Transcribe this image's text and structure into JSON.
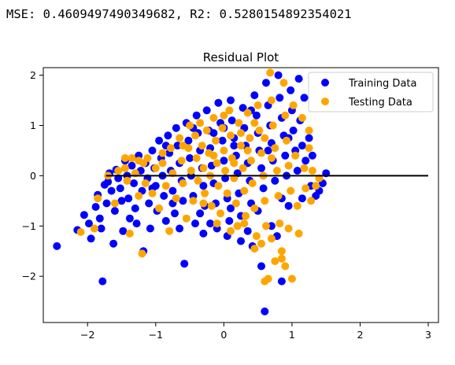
{
  "output": {
    "metrics_line": "MSE: 0.4609497490349682, R2: 0.5280154892354021"
  },
  "chart_data": {
    "type": "scatter",
    "title": "Residual Plot",
    "xlabel": "",
    "ylabel": "",
    "xlim": [
      -2.65,
      3.15
    ],
    "ylim": [
      -2.92,
      2.15
    ],
    "xticks": [
      -2,
      -1,
      0,
      1,
      2,
      3
    ],
    "yticks": [
      -2,
      -1,
      0,
      1,
      2
    ],
    "xtick_labels": [
      "−2",
      "−1",
      "0",
      "1",
      "2",
      "3"
    ],
    "ytick_labels": [
      "−2",
      "−1",
      "0",
      "1",
      "2"
    ],
    "grid": false,
    "legend": "top-right",
    "hline": {
      "y": 0,
      "xmin": -1.73,
      "xmax": 3.0,
      "color": "#000000"
    },
    "series": [
      {
        "name": "Training Data",
        "color": "#0000ff",
        "points": [
          [
            -2.45,
            -1.4
          ],
          [
            -2.15,
            -1.08
          ],
          [
            -2.05,
            -0.78
          ],
          [
            -1.98,
            -0.95
          ],
          [
            -1.95,
            -1.25
          ],
          [
            -1.88,
            -0.62
          ],
          [
            -1.85,
            -0.38
          ],
          [
            -1.82,
            -0.85
          ],
          [
            -1.8,
            -1.05
          ],
          [
            -1.78,
            -2.1
          ],
          [
            -1.75,
            -0.18
          ],
          [
            -1.72,
            -0.55
          ],
          [
            -1.7,
            -0.12
          ],
          [
            -1.68,
            0.05
          ],
          [
            -1.65,
            -0.3
          ],
          [
            -1.62,
            -1.35
          ],
          [
            -1.6,
            -0.7
          ],
          [
            -1.58,
            0.12
          ],
          [
            -1.55,
            -0.05
          ],
          [
            -1.52,
            -0.25
          ],
          [
            -1.5,
            -0.5
          ],
          [
            -1.48,
            -1.1
          ],
          [
            -1.45,
            0.3
          ],
          [
            -1.42,
            0.0
          ],
          [
            -1.4,
            -0.45
          ],
          [
            -1.38,
            -0.85
          ],
          [
            -1.35,
            0.2
          ],
          [
            -1.32,
            -0.15
          ],
          [
            -1.3,
            -0.65
          ],
          [
            -1.28,
            -0.95
          ],
          [
            -1.25,
            0.4
          ],
          [
            -1.22,
            0.1
          ],
          [
            -1.2,
            -0.3
          ],
          [
            -1.18,
            -1.5
          ],
          [
            -1.15,
            0.25
          ],
          [
            -1.12,
            -0.05
          ],
          [
            -1.1,
            -0.55
          ],
          [
            -1.08,
            -1.05
          ],
          [
            -1.05,
            0.5
          ],
          [
            -1.02,
            0.15
          ],
          [
            -1.0,
            -0.2
          ],
          [
            -0.98,
            -0.7
          ],
          [
            -0.95,
            0.7
          ],
          [
            -0.92,
            0.35
          ],
          [
            -0.9,
            0.0
          ],
          [
            -0.88,
            -0.4
          ],
          [
            -0.85,
            -0.9
          ],
          [
            -0.82,
            0.8
          ],
          [
            -0.8,
            0.45
          ],
          [
            -0.78,
            0.1
          ],
          [
            -0.75,
            -0.3
          ],
          [
            -0.72,
            -0.75
          ],
          [
            -0.7,
            0.95
          ],
          [
            -0.68,
            0.6
          ],
          [
            -0.65,
            0.25
          ],
          [
            -0.62,
            -0.1
          ],
          [
            -0.6,
            -0.5
          ],
          [
            -0.58,
            -1.75
          ],
          [
            -0.55,
            1.05
          ],
          [
            -0.52,
            0.7
          ],
          [
            -0.5,
            0.35
          ],
          [
            -0.48,
            0.0
          ],
          [
            -0.45,
            -0.4
          ],
          [
            -0.42,
            -0.95
          ],
          [
            -0.4,
            1.2
          ],
          [
            -0.38,
            0.85
          ],
          [
            -0.35,
            0.5
          ],
          [
            -0.32,
            0.15
          ],
          [
            -0.3,
            -0.2
          ],
          [
            -0.28,
            -0.6
          ],
          [
            -0.25,
            1.3
          ],
          [
            -0.22,
            0.9
          ],
          [
            -0.2,
            0.55
          ],
          [
            -0.18,
            0.2
          ],
          [
            -0.15,
            -0.15
          ],
          [
            -0.12,
            -0.55
          ],
          [
            -0.1,
            -1.05
          ],
          [
            -0.08,
            1.45
          ],
          [
            -0.05,
            1.05
          ],
          [
            -0.02,
            0.7
          ],
          [
            0.0,
            0.3
          ],
          [
            0.02,
            -0.05
          ],
          [
            0.05,
            -0.45
          ],
          [
            0.08,
            -0.9
          ],
          [
            0.1,
            1.5
          ],
          [
            0.12,
            1.1
          ],
          [
            0.15,
            0.75
          ],
          [
            0.18,
            0.4
          ],
          [
            0.2,
            0.05
          ],
          [
            0.22,
            -0.35
          ],
          [
            0.25,
            -0.8
          ],
          [
            0.28,
            1.35
          ],
          [
            0.3,
            0.95
          ],
          [
            0.32,
            0.6
          ],
          [
            0.35,
            0.25
          ],
          [
            0.38,
            -0.1
          ],
          [
            0.4,
            -0.55
          ],
          [
            0.42,
            -1.4
          ],
          [
            0.45,
            1.6
          ],
          [
            0.48,
            1.2
          ],
          [
            0.5,
            0.85
          ],
          [
            0.52,
            0.5
          ],
          [
            0.55,
            0.15
          ],
          [
            0.58,
            -0.25
          ],
          [
            0.6,
            -2.7
          ],
          [
            0.62,
            1.85
          ],
          [
            0.65,
            1.4
          ],
          [
            0.68,
            1.0
          ],
          [
            0.7,
            0.65
          ],
          [
            0.72,
            0.3
          ],
          [
            0.75,
            -0.1
          ],
          [
            0.78,
            -1.2
          ],
          [
            0.8,
            2.0
          ],
          [
            0.82,
            1.55
          ],
          [
            0.85,
            1.15
          ],
          [
            0.88,
            0.8
          ],
          [
            0.9,
            0.4
          ],
          [
            0.92,
            0.0
          ],
          [
            0.95,
            -0.6
          ],
          [
            0.98,
            1.7
          ],
          [
            1.0,
            1.3
          ],
          [
            1.02,
            0.9
          ],
          [
            1.05,
            0.5
          ],
          [
            1.08,
            0.1
          ],
          [
            1.1,
            1.93
          ],
          [
            1.12,
            1.1
          ],
          [
            1.15,
            0.6
          ],
          [
            1.18,
            1.55
          ],
          [
            1.2,
            0.3
          ],
          [
            1.25,
            0.75
          ],
          [
            1.28,
            -0.2
          ],
          [
            1.3,
            0.4
          ],
          [
            1.35,
            -0.4
          ],
          [
            1.4,
            -0.3
          ],
          [
            1.45,
            -0.15
          ],
          [
            1.5,
            0.05
          ],
          [
            -0.3,
            -1.15
          ],
          [
            0.05,
            -1.2
          ],
          [
            0.35,
            -1.1
          ],
          [
            0.7,
            -1.0
          ],
          [
            -0.65,
            -1.05
          ],
          [
            0.85,
            -2.1
          ],
          [
            0.55,
            -1.8
          ],
          [
            0.25,
            -1.3
          ],
          [
            -0.85,
            0.6
          ],
          [
            -0.45,
            0.95
          ],
          [
            0.0,
            0.95
          ],
          [
            0.4,
            1.3
          ],
          [
            -0.15,
            0.85
          ],
          [
            0.15,
            0.6
          ],
          [
            0.65,
            0.5
          ],
          [
            0.95,
            0.75
          ],
          [
            -1.05,
            -0.25
          ],
          [
            -0.75,
            -0.55
          ],
          [
            -0.35,
            -0.75
          ],
          [
            0.1,
            -0.65
          ],
          [
            0.5,
            -0.7
          ],
          [
            0.85,
            -0.45
          ],
          [
            1.15,
            -0.45
          ],
          [
            -0.2,
            -0.95
          ]
        ]
      },
      {
        "name": "Testing Data",
        "color": "#ffa500",
        "points": [
          [
            -2.1,
            -1.12
          ],
          [
            -1.9,
            -1.05
          ],
          [
            -1.85,
            -0.45
          ],
          [
            -1.7,
            0.0
          ],
          [
            -1.6,
            -0.55
          ],
          [
            -1.55,
            0.1
          ],
          [
            -1.45,
            0.15
          ],
          [
            -1.42,
            -0.1
          ],
          [
            -1.38,
            -1.15
          ],
          [
            -1.35,
            0.35
          ],
          [
            -1.3,
            0.05
          ],
          [
            -1.25,
            -0.4
          ],
          [
            -1.2,
            -1.55
          ],
          [
            -1.18,
            0.25
          ],
          [
            -1.15,
            -0.15
          ],
          [
            -1.12,
            0.35
          ],
          [
            -1.05,
            -0.35
          ],
          [
            -1.0,
            0.15
          ],
          [
            -0.95,
            -0.65
          ],
          [
            -0.9,
            0.25
          ],
          [
            -0.85,
            -0.2
          ],
          [
            -0.8,
            -1.1
          ],
          [
            -0.78,
            0.55
          ],
          [
            -0.75,
            0.05
          ],
          [
            -0.7,
            -0.45
          ],
          [
            -0.65,
            0.75
          ],
          [
            -0.62,
            0.3
          ],
          [
            -0.6,
            -0.15
          ],
          [
            -0.55,
            -0.85
          ],
          [
            -0.52,
            0.55
          ],
          [
            -0.5,
            1.0
          ],
          [
            -0.48,
            0.1
          ],
          [
            -0.45,
            -0.5
          ],
          [
            -0.42,
            0.8
          ],
          [
            -0.4,
            0.35
          ],
          [
            -0.38,
            -0.1
          ],
          [
            -0.35,
            1.05
          ],
          [
            -0.32,
            0.6
          ],
          [
            -0.3,
            0.15
          ],
          [
            -0.28,
            -0.35
          ],
          [
            -0.25,
            0.9
          ],
          [
            -0.22,
            0.45
          ],
          [
            -0.2,
            0.0
          ],
          [
            -0.18,
            -0.6
          ],
          [
            -0.15,
            1.15
          ],
          [
            -0.12,
            0.7
          ],
          [
            -0.1,
            0.25
          ],
          [
            -0.08,
            -0.2
          ],
          [
            -0.05,
            -0.75
          ],
          [
            -0.02,
            0.95
          ],
          [
            0.0,
            0.5
          ],
          [
            0.02,
            0.1
          ],
          [
            0.05,
            -0.35
          ],
          [
            0.08,
            1.3
          ],
          [
            0.1,
            0.8
          ],
          [
            0.12,
            0.35
          ],
          [
            0.15,
            -0.05
          ],
          [
            0.18,
            -0.55
          ],
          [
            0.2,
            -1.0
          ],
          [
            0.22,
            1.05
          ],
          [
            0.25,
            0.6
          ],
          [
            0.28,
            0.15
          ],
          [
            0.3,
            -0.3
          ],
          [
            0.32,
            -0.8
          ],
          [
            0.35,
            1.25
          ],
          [
            0.38,
            0.75
          ],
          [
            0.4,
            0.3
          ],
          [
            0.42,
            -0.15
          ],
          [
            0.45,
            -0.65
          ],
          [
            0.48,
            -1.2
          ],
          [
            0.5,
            1.4
          ],
          [
            0.52,
            0.9
          ],
          [
            0.55,
            0.45
          ],
          [
            0.58,
            0.0
          ],
          [
            0.6,
            -0.5
          ],
          [
            0.62,
            -1.0
          ],
          [
            0.65,
            -2.05
          ],
          [
            0.68,
            2.05
          ],
          [
            0.7,
            1.5
          ],
          [
            0.72,
            1.0
          ],
          [
            0.75,
            0.55
          ],
          [
            0.78,
            0.1
          ],
          [
            0.8,
            -0.4
          ],
          [
            0.82,
            -0.95
          ],
          [
            0.85,
            -1.65
          ],
          [
            0.88,
            1.85
          ],
          [
            0.9,
            1.2
          ],
          [
            0.92,
            0.7
          ],
          [
            0.95,
            0.2
          ],
          [
            0.98,
            -0.3
          ],
          [
            1.0,
            -2.05
          ],
          [
            1.02,
            1.4
          ],
          [
            1.05,
            0.4
          ],
          [
            1.08,
            -0.6
          ],
          [
            1.1,
            -1.15
          ],
          [
            1.15,
            1.15
          ],
          [
            1.18,
            0.15
          ],
          [
            1.2,
            -0.25
          ],
          [
            1.25,
            0.9
          ],
          [
            1.28,
            -0.5
          ],
          [
            1.3,
            0.1
          ],
          [
            1.35,
            -0.2
          ],
          [
            1.4,
            -0.05
          ],
          [
            1.25,
            0.55
          ],
          [
            0.45,
            -1.45
          ],
          [
            0.55,
            -1.35
          ],
          [
            0.7,
            -1.25
          ],
          [
            0.85,
            -1.5
          ],
          [
            0.75,
            -1.7
          ],
          [
            0.9,
            -1.8
          ],
          [
            0.6,
            -2.1
          ],
          [
            0.95,
            -1.05
          ],
          [
            -0.1,
            -0.95
          ],
          [
            0.1,
            -1.1
          ],
          [
            0.3,
            -0.95
          ],
          [
            -0.3,
            -0.55
          ],
          [
            0.25,
            0.85
          ],
          [
            0.0,
            1.2
          ],
          [
            0.45,
            1.05
          ],
          [
            0.6,
            0.75
          ],
          [
            -0.6,
            0.6
          ],
          [
            -0.9,
            0.45
          ],
          [
            -1.25,
            0.3
          ],
          [
            -1.45,
            0.35
          ],
          [
            0.35,
            0.5
          ],
          [
            0.15,
            0.25
          ],
          [
            -0.15,
            0.4
          ],
          [
            0.7,
            0.35
          ]
        ]
      }
    ]
  }
}
